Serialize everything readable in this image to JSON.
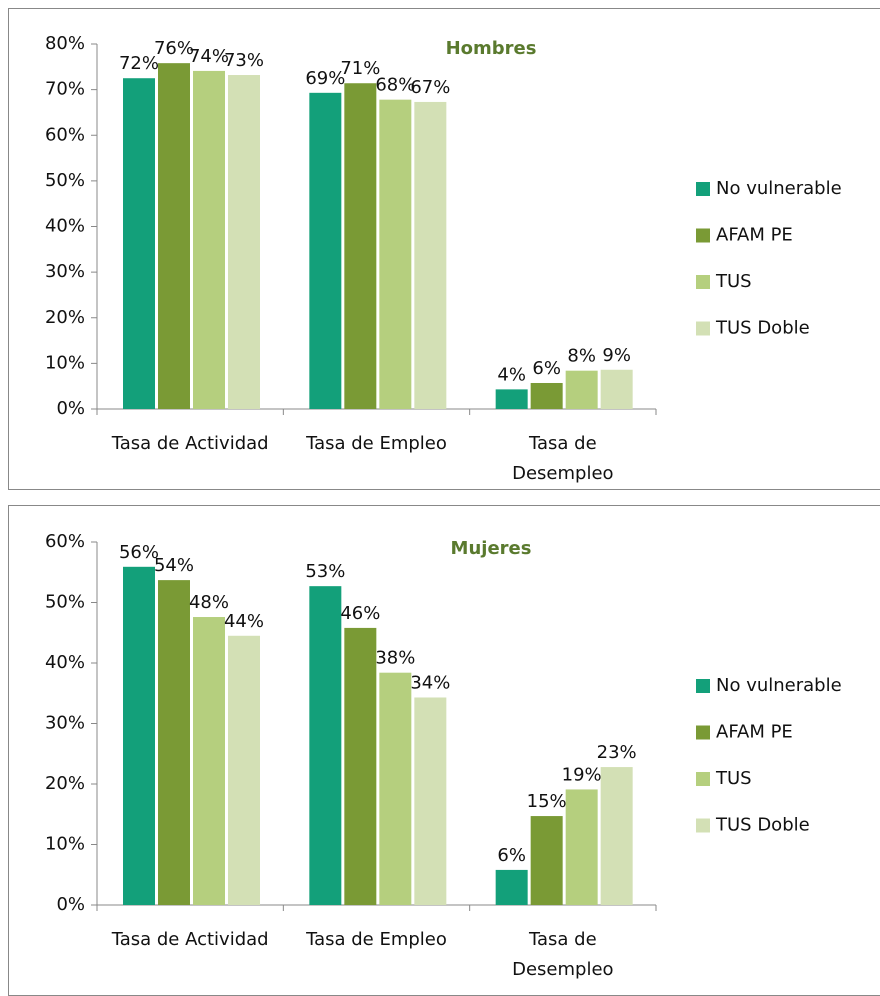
{
  "chart_data": [
    {
      "type": "bar",
      "title": "Hombres",
      "categories": [
        "Tasa de Actividad",
        "Tasa de Empleo",
        "Tasa de Desempleo"
      ],
      "series": [
        {
          "name": "No vulnerable",
          "color": "#13a07a",
          "values": [
            72.5,
            69.3,
            4.3
          ],
          "value_labels": [
            "72%",
            "69%",
            "4%"
          ]
        },
        {
          "name": "AFAM PE",
          "color": "#7a9a35",
          "values": [
            75.8,
            71.4,
            5.7
          ],
          "value_labels": [
            "76%",
            "71%",
            "6%"
          ]
        },
        {
          "name": "TUS",
          "color": "#b5cf7e",
          "values": [
            74.1,
            67.8,
            8.4
          ],
          "value_labels": [
            "74%",
            "68%",
            "8%"
          ]
        },
        {
          "name": "TUS Doble",
          "color": "#d3e0b5",
          "values": [
            73.2,
            67.3,
            8.6
          ],
          "value_labels": [
            "73%",
            "67%",
            "9%"
          ]
        }
      ],
      "ylim": [
        0,
        80
      ],
      "yticks": [
        {
          "value": 0,
          "label": "0%"
        },
        {
          "value": 10,
          "label": "10%"
        },
        {
          "value": 20,
          "label": "20%"
        },
        {
          "value": 30,
          "label": "30%"
        },
        {
          "value": 40,
          "label": "40%"
        },
        {
          "value": 50,
          "label": "50%"
        },
        {
          "value": 60,
          "label": "60%"
        },
        {
          "value": 70,
          "label": "70%"
        },
        {
          "value": 80,
          "label": "80%"
        }
      ],
      "legend": "right"
    },
    {
      "type": "bar",
      "title": "Mujeres",
      "categories": [
        "Tasa de Actividad",
        "Tasa de Empleo",
        "Tasa de Desempleo"
      ],
      "series": [
        {
          "name": "No vulnerable",
          "color": "#13a07a",
          "values": [
            55.9,
            52.7,
            5.8
          ],
          "value_labels": [
            "56%",
            "53%",
            "6%"
          ]
        },
        {
          "name": "AFAM PE",
          "color": "#7a9a35",
          "values": [
            53.7,
            45.8,
            14.7
          ],
          "value_labels": [
            "54%",
            "46%",
            "15%"
          ]
        },
        {
          "name": "TUS",
          "color": "#b5cf7e",
          "values": [
            47.6,
            38.4,
            19.1
          ],
          "value_labels": [
            "48%",
            "38%",
            "19%"
          ]
        },
        {
          "name": "TUS Doble",
          "color": "#d3e0b5",
          "values": [
            44.5,
            34.3,
            22.8
          ],
          "value_labels": [
            "44%",
            "34%",
            "23%"
          ]
        }
      ],
      "ylim": [
        0,
        60
      ],
      "yticks": [
        {
          "value": 0,
          "label": "0%"
        },
        {
          "value": 10,
          "label": "10%"
        },
        {
          "value": 20,
          "label": "20%"
        },
        {
          "value": 30,
          "label": "30%"
        },
        {
          "value": 40,
          "label": "40%"
        },
        {
          "value": 50,
          "label": "50%"
        },
        {
          "value": 60,
          "label": "60%"
        }
      ],
      "legend": "right"
    }
  ]
}
